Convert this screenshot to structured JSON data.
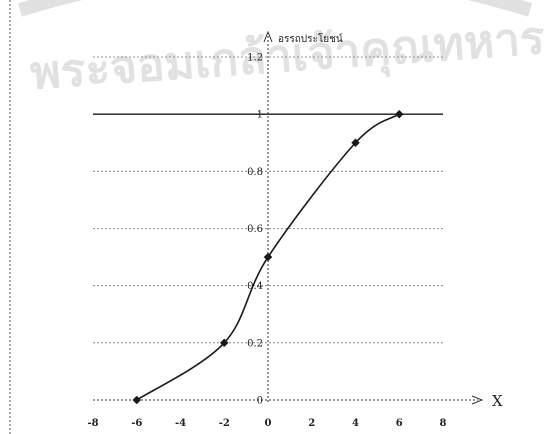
{
  "watermark": {
    "text": "พระจอมเกล้าเจ้าคุณทหาร"
  },
  "chart_data": {
    "type": "line",
    "title": "",
    "xlabel": "X",
    "ylabel": "อรรถประโยชน์",
    "xlim": [
      -8,
      8
    ],
    "ylim": [
      0,
      1.2
    ],
    "x_ticks": [
      -8,
      -6,
      -4,
      -2,
      0,
      2,
      4,
      6,
      8
    ],
    "y_ticks": [
      0,
      0.2,
      0.4,
      0.6,
      0.8,
      1,
      1.2
    ],
    "grid": true,
    "legend": "none",
    "series": [
      {
        "x": [
          -6,
          -2,
          0,
          4,
          6
        ],
        "values": [
          0,
          0.2,
          0.5,
          0.9,
          1
        ],
        "color": "#1a1a1a"
      }
    ]
  }
}
